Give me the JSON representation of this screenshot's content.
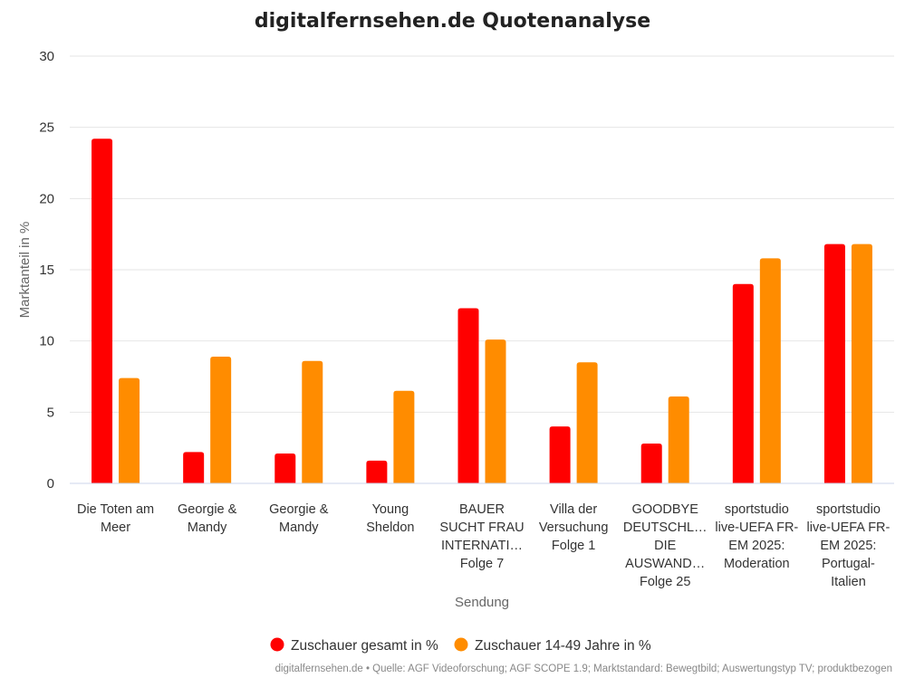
{
  "chart_data": {
    "type": "bar",
    "title": "digitalfernsehen.de Quotenanalyse",
    "xlabel": "Sendung",
    "ylabel": "Marktanteil in %",
    "ylim": [
      0,
      30
    ],
    "yticks": [
      0,
      5,
      10,
      15,
      20,
      25,
      30
    ],
    "grid": true,
    "legend": "bottom-center",
    "categories": [
      [
        "Die Toten am",
        "Meer"
      ],
      [
        "Georgie &",
        "Mandy"
      ],
      [
        "Georgie &",
        "Mandy"
      ],
      [
        "Young",
        "Sheldon"
      ],
      [
        "BAUER",
        "SUCHT FRAU",
        "INTERNATI…",
        "Folge 7"
      ],
      [
        "Villa der",
        "Versuchung",
        "Folge 1"
      ],
      [
        "GOODBYE",
        "DEUTSCHL…",
        "DIE",
        "AUSWAND…",
        "Folge 25"
      ],
      [
        "sportstudio",
        "live-UEFA FR-",
        "EM 2025:",
        "Moderation"
      ],
      [
        "sportstudio",
        "live-UEFA FR-",
        "EM 2025:",
        "Portugal-",
        "Italien"
      ]
    ],
    "series": [
      {
        "name": "Zuschauer gesamt in %",
        "color": "#ff0000",
        "values": [
          24.2,
          2.2,
          2.1,
          1.6,
          12.3,
          4.0,
          2.8,
          14.0,
          16.8
        ]
      },
      {
        "name": "Zuschauer 14-49 Jahre in %",
        "color": "#ff8c00",
        "values": [
          7.4,
          8.9,
          8.6,
          6.5,
          10.1,
          8.5,
          6.1,
          15.8,
          16.8
        ]
      }
    ]
  },
  "credits": "digitalfernsehen.de • Quelle: AGF Videoforschung; AGF SCOPE 1.9; Marktstandard: Bewegtbild; Auswertungstyp TV; produktbezogen"
}
